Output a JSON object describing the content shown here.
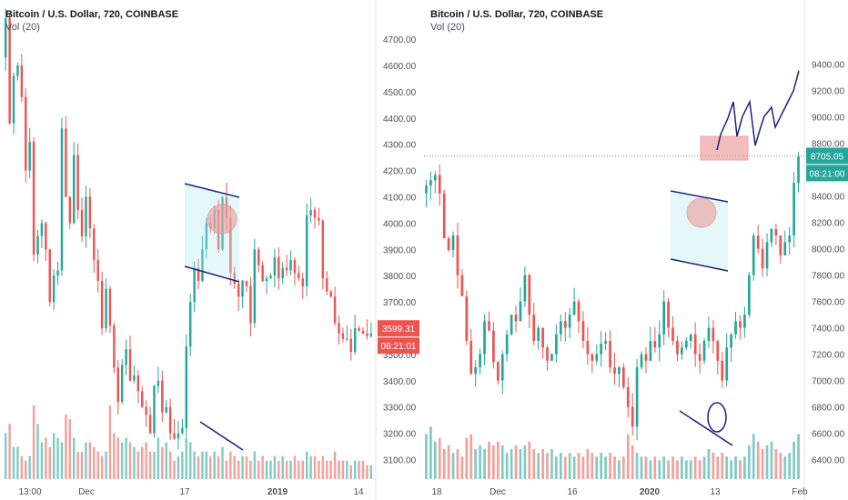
{
  "panels": [
    {
      "id": "left",
      "title": "Bitcoin / U.S. Dollar, 720, COINBASE",
      "volume_label": "Vol (20)",
      "price_badge": "3599.31",
      "time_badge": "08:21:01",
      "badge_color": "#ef5350",
      "x_labels": [
        "13:00",
        "Dec",
        "17",
        "2019",
        "14"
      ],
      "chart_data": {
        "type": "candlestick",
        "title": "Bitcoin / U.S. Dollar, 720, COINBASE",
        "ylim": [
          3050,
          4780
        ],
        "y_ticks": [
          "3100.00",
          "3200.00",
          "3300.00",
          "3400.00",
          "3500.00",
          "3600.00",
          "3700.00",
          "3800.00",
          "3900.00",
          "4000.00",
          "4100.00",
          "4200.00",
          "4300.00",
          "4400.00",
          "4500.00",
          "4600.00",
          "4700.00"
        ],
        "closes": [
          4780,
          4380,
          4560,
          4600,
          4480,
          4200,
          4310,
          3880,
          3950,
          4000,
          3900,
          3700,
          3800,
          3820,
          4360,
          4100,
          4000,
          4260,
          4050,
          3950,
          4100,
          3980,
          3860,
          3780,
          3600,
          3750,
          3610,
          3450,
          3320,
          3460,
          3520,
          3400,
          3420,
          3360,
          3300,
          3270,
          3200,
          3380,
          3400,
          3280,
          3300,
          3200,
          3180,
          3200,
          3220,
          3530,
          3700,
          3830,
          3780,
          3900,
          4000,
          3980,
          4050,
          3900,
          4100,
          4020,
          3810,
          3770,
          3720,
          3780,
          3760,
          3620,
          3900,
          3840,
          3780,
          3790,
          3800,
          3870,
          3790,
          3830,
          3820,
          3860,
          3810,
          3790,
          3760,
          4030,
          4050,
          4020,
          4010,
          3790,
          3740,
          3720,
          3620,
          3580,
          3560,
          3560,
          3510,
          3600,
          3590,
          3580,
          3570,
          3580
        ],
        "volume": [
          50,
          60,
          35,
          35,
          25,
          20,
          25,
          80,
          60,
          40,
          45,
          35,
          50,
          45,
          40,
          70,
          65,
          45,
          30,
          30,
          40,
          40,
          35,
          30,
          25,
          30,
          80,
          50,
          45,
          40,
          45,
          40,
          35,
          30,
          35,
          40,
          30,
          30,
          45,
          35,
          40,
          30,
          20,
          25,
          30,
          45,
          40,
          30,
          25,
          30,
          30,
          25,
          30,
          25,
          35,
          20,
          30,
          25,
          20,
          25,
          25,
          20,
          30,
          20,
          25,
          20,
          20,
          25,
          20,
          25,
          20,
          20,
          25,
          20,
          20,
          30,
          25,
          25,
          20,
          25,
          20,
          20,
          30,
          20,
          20,
          20,
          15,
          20,
          20,
          20,
          15,
          15
        ]
      }
    },
    {
      "id": "right",
      "title": "Bitcoin / U.S. Dollar, 720, COINBASE",
      "volume_label": "Vol (20)",
      "price_badge": "8705.05",
      "time_badge": "08:21:00",
      "badge_color": "#26a69a",
      "x_labels": [
        "18",
        "Dec",
        "16",
        "2020",
        "13",
        "Feb"
      ],
      "chart_data": {
        "type": "candlestick",
        "title": "Bitcoin / U.S. Dollar, 720, COINBASE",
        "ylim": [
          6300,
          9750
        ],
        "y_ticks": [
          "6400.00",
          "6600.00",
          "6800.00",
          "7000.00",
          "7200.00",
          "7400.00",
          "7600.00",
          "7800.00",
          "8000.00",
          "8200.00",
          "8400.00",
          "8600.00",
          "8800.00",
          "9000.00",
          "9200.00",
          "9400.00"
        ],
        "closes": [
          8480,
          8520,
          8560,
          8420,
          8080,
          7990,
          8100,
          7800,
          7640,
          7300,
          7050,
          7100,
          7200,
          7450,
          7380,
          7140,
          7000,
          7200,
          7350,
          7500,
          7450,
          7600,
          7800,
          7500,
          7300,
          7400,
          7250,
          7150,
          7200,
          7350,
          7450,
          7400,
          7500,
          7600,
          7450,
          7300,
          7200,
          7150,
          7200,
          7280,
          7300,
          7100,
          7050,
          7100,
          6950,
          6800,
          6650,
          7100,
          7200,
          7150,
          7300,
          7250,
          7350,
          7600,
          7400,
          7300,
          7200,
          7250,
          7300,
          7350,
          7200,
          7150,
          7300,
          7400,
          7300,
          7150,
          7000,
          7250,
          7350,
          7450,
          7400,
          7500,
          7800,
          8100,
          8000,
          7850,
          8050,
          8150,
          8100,
          7950,
          8050,
          8100,
          8500,
          8700
        ],
        "volume": [
          60,
          70,
          50,
          55,
          40,
          45,
          35,
          40,
          30,
          55,
          60,
          40,
          45,
          40,
          50,
          45,
          50,
          45,
          35,
          40,
          45,
          40,
          45,
          50,
          40,
          35,
          40,
          35,
          40,
          30,
          35,
          30,
          35,
          30,
          35,
          30,
          40,
          35,
          30,
          35,
          30,
          35,
          30,
          25,
          30,
          60,
          45,
          35,
          30,
          30,
          25,
          30,
          25,
          30,
          25,
          30,
          25,
          30,
          25,
          25,
          30,
          25,
          30,
          40,
          35,
          30,
          35,
          30,
          25,
          30,
          25,
          30,
          45,
          60,
          50,
          40,
          45,
          50,
          40,
          35,
          30,
          35,
          50,
          60
        ]
      }
    }
  ]
}
